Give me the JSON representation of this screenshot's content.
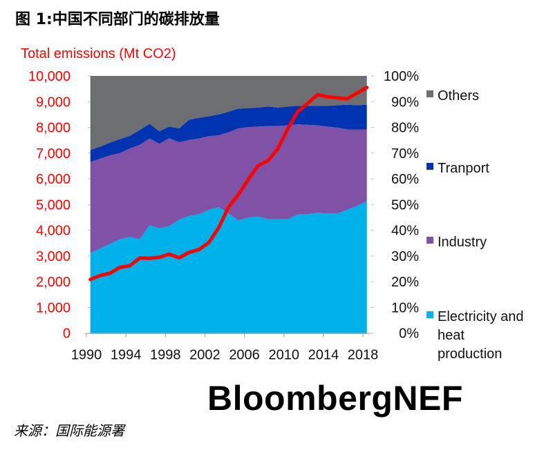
{
  "figure_title": "图 1:中国不同部门的碳排放量",
  "brand": "BloombergNEF",
  "source": "来源：国际能源署",
  "chart_data": {
    "type": "area",
    "stacked": "percent",
    "ylabel_left": "Total emissions (Mt CO2)",
    "ylim_left": [
      0,
      10000
    ],
    "yticks_left": [
      "0",
      "1,000",
      "2,000",
      "3,000",
      "4,000",
      "5,000",
      "6,000",
      "7,000",
      "8,000",
      "9,000",
      "10,000"
    ],
    "ylim_right": [
      0,
      100
    ],
    "yticks_right": [
      "0%",
      "10%",
      "20%",
      "30%",
      "40%",
      "50%",
      "60%",
      "70%",
      "80%",
      "90%",
      "100%"
    ],
    "xticks": [
      "1990",
      "1994",
      "1998",
      "2002",
      "2006",
      "2010",
      "2014",
      "2018"
    ],
    "x": [
      1990,
      1991,
      1992,
      1993,
      1994,
      1995,
      1996,
      1997,
      1998,
      1999,
      2000,
      2001,
      2002,
      2003,
      2004,
      2005,
      2006,
      2007,
      2008,
      2009,
      2010,
      2011,
      2012,
      2013,
      2014,
      2015,
      2016,
      2017,
      2018
    ],
    "legend_position": "right",
    "series": [
      {
        "name": "Electricity and heat production",
        "name_lines": [
          "Electricity and",
          "heat",
          "production"
        ],
        "axis": "right",
        "color": "#00b0e8",
        "values": [
          31.1,
          32.9,
          34.7,
          36.5,
          37.4,
          36.5,
          41.9,
          40.8,
          41.6,
          44.1,
          45.6,
          46.2,
          47.9,
          49.0,
          46.5,
          43.8,
          45.0,
          45.3,
          44.3,
          44.3,
          44.3,
          46.1,
          46.2,
          46.8,
          46.5,
          46.5,
          47.9,
          49.5,
          51.3
        ]
      },
      {
        "name": "Industry",
        "axis": "right",
        "color": "#7f52a8",
        "values": [
          35.4,
          34.9,
          34.4,
          33.5,
          34.4,
          36.7,
          33.8,
          32.8,
          34.2,
          30.1,
          29.5,
          29.5,
          28.7,
          27.9,
          31.6,
          35.8,
          35.1,
          35.0,
          36.2,
          36.2,
          36.5,
          35.1,
          34.8,
          34.0,
          33.8,
          33.4,
          31.3,
          29.7,
          27.9
        ]
      },
      {
        "name": "Tranport",
        "axis": "right",
        "color": "#0033b0",
        "values": [
          4.7,
          4.7,
          5.0,
          5.4,
          4.9,
          5.8,
          5.7,
          4.9,
          4.5,
          5.4,
          7.9,
          8.0,
          7.7,
          8.1,
          8.0,
          7.7,
          7.4,
          7.4,
          7.6,
          7.2,
          7.3,
          7.2,
          7.4,
          7.6,
          8.1,
          8.7,
          9.6,
          9.4,
          9.6
        ]
      },
      {
        "name": "Others",
        "axis": "right",
        "color": "#6d6e71",
        "values": [
          28.8,
          27.5,
          25.9,
          24.6,
          23.3,
          21.0,
          18.6,
          21.5,
          19.7,
          20.4,
          17.0,
          16.3,
          15.7,
          15.0,
          13.9,
          12.7,
          12.5,
          12.3,
          11.9,
          12.3,
          11.9,
          11.6,
          11.6,
          11.6,
          11.6,
          11.4,
          11.2,
          11.4,
          11.2
        ]
      }
    ],
    "line": {
      "axis": "left",
      "color": "#ff0000",
      "values": [
        2090,
        2240,
        2330,
        2560,
        2620,
        2920,
        2910,
        2950,
        3070,
        2930,
        3140,
        3250,
        3520,
        4100,
        4900,
        5390,
        5980,
        6510,
        6710,
        7180,
        7940,
        8610,
        8930,
        9270,
        9190,
        9150,
        9110,
        9330,
        9550
      ]
    }
  }
}
